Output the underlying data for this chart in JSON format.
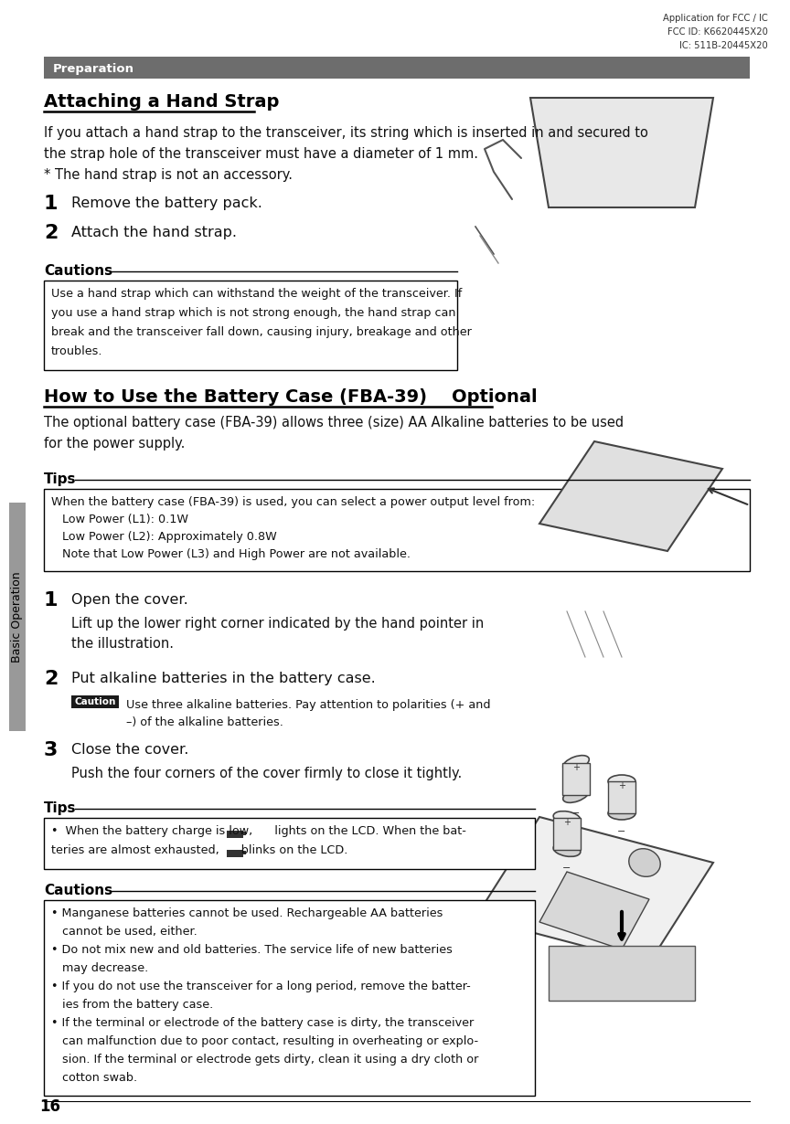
{
  "page_bg": "#ffffff",
  "header_text_right": "Application for FCC / IC\nFCC ID: K6620445X20\nIC: 511B-20445X20",
  "header_bar_color": "#6d6d6d",
  "header_bar_text": "Preparation",
  "header_bar_text_color": "#ffffff",
  "section1_title": "Attaching a Hand Strap",
  "section1_body_lines": [
    "If you attach a hand strap to the transceiver, its string which is inserted in and secured to",
    "the strap hole of the transceiver must have a diameter of 1 mm.",
    "* The hand strap is not an accessory."
  ],
  "section1_steps": [
    {
      "num": "1",
      "text": "Remove the battery pack."
    },
    {
      "num": "2",
      "text": "Attach the hand strap."
    }
  ],
  "cautions1_title": "Cautions",
  "cautions1_lines": [
    "Use a hand strap which can withstand the weight of the transceiver. If",
    "you use a hand strap which is not strong enough, the hand strap can",
    "break and the transceiver fall down, causing injury, breakage and other",
    "troubles."
  ],
  "section2_title": "How to Use the Battery Case (FBA-39)    Optional",
  "section2_body_lines": [
    "The optional battery case (FBA-39) allows three (size) AA Alkaline batteries to be used",
    "for the power supply."
  ],
  "tips1_title": "Tips",
  "tips1_lines": [
    "When the battery case (FBA-39) is used, you can select a power output level from:",
    "   Low Power (L1): 0.1W",
    "   Low Power (L2): Approximately 0.8W",
    "   Note that Low Power (L3) and High Power are not available."
  ],
  "step2_1_main": "Open the cover.",
  "step2_1_sub": [
    "Lift up the lower right corner indicated by the hand pointer in",
    "the illustration."
  ],
  "step2_2_main": "Put alkaline batteries in the battery case.",
  "step2_2_caution": [
    "Use three alkaline batteries. Pay attention to polarities (+ and",
    "–) of the alkaline batteries."
  ],
  "step2_3_main": "Close the cover.",
  "step2_3_sub": "Push the four corners of the cover firmly to close it tightly.",
  "tips2_title": "Tips",
  "tips2_lines": [
    "•  When the battery charge is low,      lights on the LCD. When the bat-",
    "teries are almost exhausted,      blinks on the LCD."
  ],
  "cautions2_title": "Cautions",
  "cautions2_lines": [
    "• Manganese batteries cannot be used. Rechargeable AA batteries",
    "   cannot be used, either.",
    "• Do not mix new and old batteries. The service life of new batteries",
    "   may decrease.",
    "• If you do not use the transceiver for a long period, remove the batter-",
    "   ies from the battery case.",
    "• If the terminal or electrode of the battery case is dirty, the transceiver",
    "   can malfunction due to poor contact, resulting in overheating or explo-",
    "   sion. If the terminal or electrode gets dirty, clean it using a dry cloth or",
    "   cotton swab."
  ],
  "sidebar_text": "Basic Operation",
  "page_number": "16",
  "sidebar_color": "#999999",
  "lm": 38,
  "rm": 810
}
